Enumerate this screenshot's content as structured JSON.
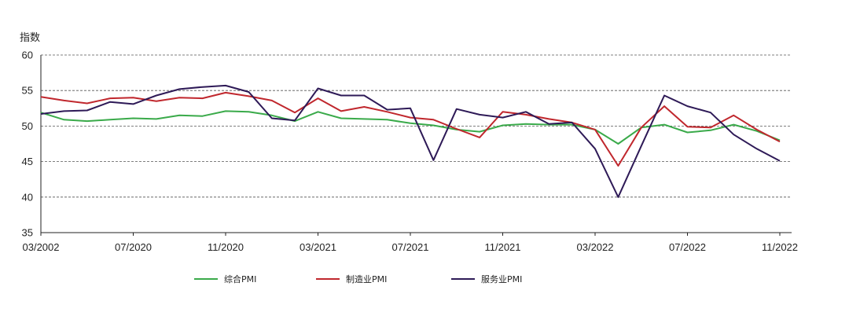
{
  "chart_data": {
    "type": "line",
    "ylabel": "指数",
    "ylim": [
      35,
      60
    ],
    "yticks": [
      35,
      40,
      45,
      50,
      55,
      60
    ],
    "grid": "horizontal dashed",
    "legend_placement": "bottom",
    "x_tick_labels": [
      "03/2002",
      "07/2020",
      "11/2020",
      "03/2021",
      "07/2021",
      "11/2021",
      "03/2022",
      "07/2022",
      "11/2022"
    ],
    "x_tick_index": [
      0,
      4,
      8,
      12,
      16,
      20,
      24,
      28,
      32
    ],
    "series": [
      {
        "name": "综合PMI",
        "color": "#3aaa4a",
        "values": [
          51.9,
          50.9,
          50.7,
          50.9,
          51.1,
          51.0,
          51.5,
          51.4,
          52.1,
          52.0,
          51.5,
          50.7,
          52.0,
          51.1,
          51.0,
          50.9,
          50.4,
          50.1,
          49.5,
          49.2,
          50.1,
          50.3,
          50.2,
          50.2,
          49.5,
          47.5,
          49.8,
          50.2,
          49.1,
          49.4,
          50.2,
          49.3,
          48.0
        ]
      },
      {
        "name": "制造业PMI",
        "color": "#c0272d",
        "values": [
          54.1,
          53.6,
          53.2,
          53.9,
          54.0,
          53.5,
          54.0,
          53.9,
          54.7,
          54.2,
          53.6,
          51.9,
          53.9,
          52.1,
          52.7,
          52.0,
          51.2,
          50.9,
          49.6,
          48.4,
          52.0,
          51.6,
          51.0,
          50.5,
          49.5,
          44.4,
          49.8,
          52.8,
          49.9,
          49.8,
          51.5,
          49.5,
          47.8
        ]
      },
      {
        "name": "服务业PMI",
        "color": "#2e1a57",
        "values": [
          51.7,
          52.1,
          52.2,
          53.4,
          53.1,
          54.3,
          55.2,
          55.5,
          55.7,
          54.8,
          51.1,
          50.8,
          55.3,
          54.3,
          54.3,
          52.3,
          52.5,
          45.2,
          52.4,
          51.6,
          51.2,
          52.0,
          50.3,
          50.5,
          46.8,
          40.0,
          47.2,
          54.3,
          52.8,
          51.9,
          48.8,
          46.8,
          45.1
        ]
      }
    ]
  }
}
